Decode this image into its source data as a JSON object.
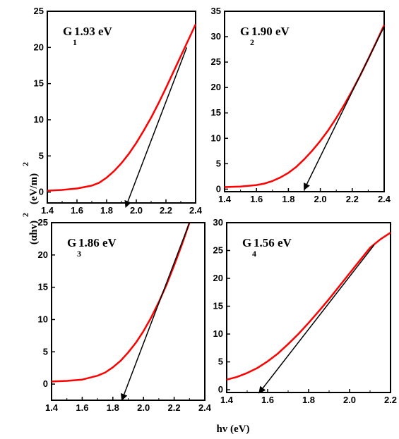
{
  "figure": {
    "xlabel": "hv (eV)",
    "ylabel_main": "(αhv)",
    "ylabel_sup": "2",
    "ylabel_units": "(eV/m)",
    "ylabel_units_sup": "2"
  },
  "chart_data": [
    {
      "type": "line",
      "panel_label": "G",
      "panel_subscript": "1",
      "panel_value": "1.93 eV",
      "xlim": [
        1.4,
        2.4
      ],
      "ylim": [
        -1.5,
        25
      ],
      "xticks": [
        "1.4",
        "1.6",
        "1.8",
        "2.0",
        "2.2",
        "2.4"
      ],
      "yticks": [
        "0",
        "5",
        "10",
        "15",
        "20",
        "25"
      ],
      "series": [
        {
          "color": "#ff0000",
          "x": [
            1.4,
            1.5,
            1.6,
            1.7,
            1.75,
            1.8,
            1.85,
            1.9,
            1.95,
            2.0,
            2.05,
            2.1,
            2.15,
            2.2,
            2.25,
            2.3,
            2.35,
            2.4
          ],
          "y": [
            0.2,
            0.3,
            0.5,
            0.9,
            1.3,
            2.0,
            2.9,
            4.0,
            5.3,
            6.8,
            8.5,
            10.3,
            12.3,
            14.4,
            16.6,
            18.8,
            21.0,
            23.2
          ]
        }
      ],
      "tangent": {
        "color": "#000000",
        "x": [
          2.34,
          1.93
        ],
        "y": [
          20.0,
          -2.0
        ]
      }
    },
    {
      "type": "line",
      "panel_label": "G",
      "panel_subscript": "2",
      "panel_value": "1.90 eV",
      "xlim": [
        1.4,
        2.4
      ],
      "ylim": [
        -0.5,
        35
      ],
      "xticks": [
        "1.4",
        "1.6",
        "1.8",
        "2.0",
        "2.2",
        "2.4"
      ],
      "yticks": [
        "0",
        "5",
        "10",
        "15",
        "20",
        "25",
        "30",
        "35"
      ],
      "series": [
        {
          "color": "#ff0000",
          "x": [
            1.4,
            1.5,
            1.6,
            1.65,
            1.7,
            1.75,
            1.8,
            1.85,
            1.9,
            1.95,
            2.0,
            2.05,
            2.1,
            2.15,
            2.2,
            2.25,
            2.3,
            2.35,
            2.4
          ],
          "y": [
            0.4,
            0.5,
            0.8,
            1.1,
            1.6,
            2.3,
            3.2,
            4.4,
            5.9,
            7.6,
            9.5,
            11.6,
            14.0,
            16.6,
            19.4,
            22.4,
            25.6,
            28.9,
            32.3
          ]
        }
      ],
      "tangent": {
        "color": "#000000",
        "x": [
          2.4,
          1.9
        ],
        "y": [
          32.0,
          0.0
        ]
      }
    },
    {
      "type": "line",
      "panel_label": "G",
      "panel_subscript": "3",
      "panel_value": "1.86 eV",
      "xlim": [
        1.4,
        2.4
      ],
      "ylim": [
        -2.5,
        25
      ],
      "xticks": [
        "1.4",
        "1.6",
        "1.8",
        "2.0",
        "2.2",
        "2.4"
      ],
      "yticks": [
        "0",
        "5",
        "10",
        "15",
        "20",
        "25"
      ],
      "series": [
        {
          "color": "#ff0000",
          "x": [
            1.4,
            1.5,
            1.6,
            1.7,
            1.75,
            1.8,
            1.85,
            1.9,
            1.95,
            2.0,
            2.05,
            2.1,
            2.15,
            2.2,
            2.25,
            2.3
          ],
          "y": [
            0.4,
            0.5,
            0.7,
            1.3,
            1.8,
            2.6,
            3.6,
            4.9,
            6.4,
            8.2,
            10.3,
            12.7,
            15.4,
            18.4,
            21.6,
            25.0
          ]
        }
      ],
      "tangent": {
        "color": "#000000",
        "x": [
          2.3,
          1.86
        ],
        "y": [
          25.0,
          -2.4
        ]
      }
    },
    {
      "type": "line",
      "panel_label": "G",
      "panel_subscript": "4",
      "panel_value": "1.56 eV",
      "xlim": [
        1.4,
        2.2
      ],
      "ylim": [
        -0.5,
        30
      ],
      "xticks": [
        "1.4",
        "1.6",
        "1.8",
        "2.0",
        "2.2"
      ],
      "yticks": [
        "0",
        "5",
        "10",
        "15",
        "20",
        "25",
        "30"
      ],
      "series": [
        {
          "color": "#ff0000",
          "x": [
            1.4,
            1.45,
            1.5,
            1.55,
            1.6,
            1.65,
            1.7,
            1.75,
            1.8,
            1.85,
            1.9,
            1.95,
            2.0,
            2.05,
            2.1,
            2.15,
            2.2
          ],
          "y": [
            1.8,
            2.3,
            3.0,
            3.9,
            5.1,
            6.5,
            8.2,
            10.0,
            12.0,
            14.1,
            16.3,
            18.6,
            20.9,
            23.2,
            25.5,
            27.0,
            28.2
          ]
        }
      ],
      "tangent": {
        "color": "#000000",
        "x": [
          2.12,
          1.56
        ],
        "y": [
          26.0,
          -0.5
        ]
      }
    }
  ]
}
